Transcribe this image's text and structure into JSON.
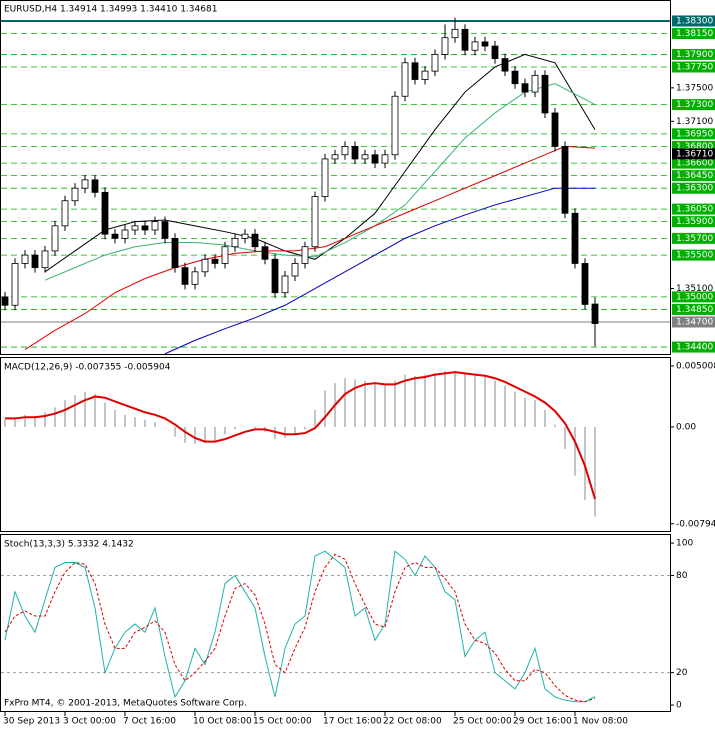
{
  "chart_data": [
    {
      "type": "candlestick",
      "title": "EURUSD,H4  1.34914 1.34993 1.34410 1.34681",
      "categories": [
        "30 Sep 2013",
        null,
        null,
        null,
        null,
        null,
        "3 Oct 00:00",
        null,
        null,
        null,
        null,
        null,
        "7 Oct 16:00",
        null,
        null,
        null,
        null,
        null,
        null,
        "10 Oct 08:00",
        null,
        null,
        null,
        null,
        null,
        "15 Oct 00:00",
        null,
        null,
        null,
        null,
        null,
        null,
        "17 Oct 16:00",
        null,
        null,
        null,
        null,
        null,
        "22 Oct 08:00",
        null,
        null,
        null,
        null,
        null,
        null,
        "25 Oct 00:00",
        null,
        null,
        null,
        null,
        null,
        "29 Oct 16:00",
        null,
        null,
        null,
        null,
        null,
        "1 Nov 08:00",
        null,
        null
      ],
      "open": [
        1.35,
        1.349,
        1.354,
        1.355,
        1.3535,
        1.3555,
        1.3585,
        1.3615,
        1.363,
        1.364,
        1.3625,
        1.3575,
        1.357,
        1.358,
        1.3585,
        1.358,
        1.359,
        1.357,
        1.3535,
        1.3515,
        1.353,
        1.3545,
        1.354,
        1.356,
        1.357,
        1.3575,
        1.356,
        1.3545,
        1.3505,
        1.3525,
        1.354,
        1.356,
        1.362,
        1.3665,
        1.367,
        1.368,
        1.3665,
        1.367,
        1.366,
        1.367,
        1.374,
        1.378,
        1.376,
        1.377,
        1.379,
        1.381,
        1.382,
        1.3795,
        1.3805,
        1.38,
        1.3785,
        1.377,
        1.3755,
        1.3745,
        1.3765,
        1.372,
        1.368,
        1.36,
        1.354,
        1.34914
      ],
      "high": [
        1.3506,
        1.3546,
        1.3556,
        1.3556,
        1.3561,
        1.3591,
        1.3621,
        1.3636,
        1.3646,
        1.3646,
        1.3631,
        1.3581,
        1.3586,
        1.3591,
        1.3591,
        1.3596,
        1.3596,
        1.3576,
        1.3541,
        1.3536,
        1.3551,
        1.3551,
        1.3566,
        1.3576,
        1.3581,
        1.3581,
        1.3566,
        1.3551,
        1.3531,
        1.3546,
        1.3566,
        1.3626,
        1.3671,
        1.3676,
        1.3686,
        1.3686,
        1.3676,
        1.3676,
        1.3676,
        1.3746,
        1.3786,
        1.3786,
        1.3776,
        1.3796,
        1.3826,
        1.3834,
        1.3826,
        1.3811,
        1.3811,
        1.3806,
        1.3791,
        1.3776,
        1.3761,
        1.3771,
        1.3771,
        1.3726,
        1.3686,
        1.3606,
        1.3546,
        1.34993
      ],
      "low": [
        1.3484,
        1.3484,
        1.3534,
        1.3529,
        1.3529,
        1.3549,
        1.3579,
        1.3609,
        1.3624,
        1.3619,
        1.3569,
        1.3564,
        1.3564,
        1.3574,
        1.3574,
        1.3574,
        1.3564,
        1.3529,
        1.3509,
        1.3509,
        1.3524,
        1.3534,
        1.3534,
        1.3554,
        1.3564,
        1.3554,
        1.3539,
        1.3499,
        1.3499,
        1.3519,
        1.3534,
        1.3554,
        1.3614,
        1.3659,
        1.3664,
        1.3659,
        1.3659,
        1.3654,
        1.3654,
        1.3664,
        1.3734,
        1.3754,
        1.3754,
        1.3764,
        1.3784,
        1.3804,
        1.3789,
        1.3789,
        1.3794,
        1.3779,
        1.3764,
        1.3749,
        1.3739,
        1.3739,
        1.3714,
        1.3674,
        1.3594,
        1.3534,
        1.3485,
        1.3441
      ],
      "close": [
        1.349,
        1.354,
        1.355,
        1.3535,
        1.3555,
        1.3585,
        1.3615,
        1.363,
        1.364,
        1.3625,
        1.3575,
        1.357,
        1.358,
        1.3585,
        1.358,
        1.359,
        1.357,
        1.3535,
        1.3515,
        1.353,
        1.3545,
        1.354,
        1.356,
        1.357,
        1.3575,
        1.356,
        1.3545,
        1.3505,
        1.3525,
        1.354,
        1.356,
        1.362,
        1.3665,
        1.367,
        1.368,
        1.3665,
        1.367,
        1.366,
        1.367,
        1.374,
        1.378,
        1.376,
        1.377,
        1.379,
        1.381,
        1.382,
        1.3795,
        1.3805,
        1.38,
        1.3785,
        1.377,
        1.3755,
        1.3745,
        1.3765,
        1.372,
        1.368,
        1.36,
        1.354,
        1.3491,
        1.34681
      ],
      "overlays": [
        {
          "color": "#000000",
          "x": [
            4,
            7,
            10,
            13,
            16,
            19,
            22,
            25,
            28,
            31,
            34,
            37,
            40,
            43,
            46,
            49,
            52,
            55,
            59
          ],
          "values": [
            1.353,
            1.3555,
            1.358,
            1.359,
            1.3592,
            1.3585,
            1.3578,
            1.357,
            1.3555,
            1.3545,
            1.357,
            1.36,
            1.365,
            1.37,
            1.3745,
            1.3775,
            1.379,
            1.378,
            1.37
          ]
        },
        {
          "color": "#3cb371",
          "x": [
            4,
            7,
            10,
            13,
            16,
            19,
            22,
            25,
            28,
            31,
            34,
            37,
            40,
            43,
            46,
            49,
            52,
            55,
            59
          ],
          "values": [
            1.352,
            1.3535,
            1.355,
            1.356,
            1.3565,
            1.3565,
            1.3562,
            1.3555,
            1.355,
            1.3548,
            1.3565,
            1.3585,
            1.361,
            1.365,
            1.369,
            1.372,
            1.3745,
            1.3755,
            1.373
          ]
        },
        {
          "color": "#e00000",
          "x": [
            2,
            5,
            8,
            11,
            14,
            17,
            20,
            23,
            26,
            29,
            32,
            35,
            38,
            41,
            44,
            47,
            50,
            53,
            56,
            59
          ],
          "values": [
            1.3437,
            1.346,
            1.348,
            1.3505,
            1.3522,
            1.3535,
            1.3545,
            1.3552,
            1.3555,
            1.3555,
            1.356,
            1.3575,
            1.359,
            1.3605,
            1.362,
            1.3635,
            1.365,
            1.3665,
            1.368,
            1.3678
          ]
        },
        {
          "color": "#0000c0",
          "x": [
            16,
            19,
            22,
            25,
            28,
            31,
            34,
            37,
            40,
            43,
            46,
            49,
            52,
            55,
            59
          ],
          "values": [
            1.3432,
            1.3448,
            1.3462,
            1.3475,
            1.349,
            1.351,
            1.353,
            1.355,
            1.357,
            1.3585,
            1.3598,
            1.361,
            1.362,
            1.363,
            1.363
          ]
        }
      ],
      "ylim": [
        1.34305,
        1.38551
      ],
      "yticks": [
        {
          "value": 1.375,
          "label": "1.37500"
        },
        {
          "value": 1.371,
          "label": "1.37100"
        },
        {
          "value": 1.351,
          "label": "1.35100"
        }
      ],
      "levels": [
        {
          "value": 1.3815,
          "label": "1.38150"
        },
        {
          "value": 1.379,
          "label": "1.37900"
        },
        {
          "value": 1.3775,
          "label": "1.37750"
        },
        {
          "value": 1.373,
          "label": "1.37300"
        },
        {
          "value": 1.3695,
          "label": "1.36950"
        },
        {
          "value": 1.368,
          "label": "1.36800"
        },
        {
          "value": 1.366,
          "label": "1.36600"
        },
        {
          "value": 1.3645,
          "label": "1.36450"
        },
        {
          "value": 1.363,
          "label": "1.36300"
        },
        {
          "value": 1.3605,
          "label": "1.36050"
        },
        {
          "value": 1.359,
          "label": "1.35900"
        },
        {
          "value": 1.357,
          "label": "1.35700"
        },
        {
          "value": 1.355,
          "label": "1.35500"
        },
        {
          "value": 1.35,
          "label": "1.35000"
        },
        {
          "value": 1.3485,
          "label": "1.34850"
        },
        {
          "value": 1.344,
          "label": "1.34400"
        }
      ],
      "level_color": "#00b000",
      "price_lines": [
        {
          "value": 1.383,
          "label": "1.38300",
          "color": "#006a6a"
        },
        {
          "value": 1.3671,
          "label": "1.36710",
          "color": "#000000"
        },
        {
          "value": 1.347,
          "label": "1.34700",
          "color": "#808080"
        }
      ]
    },
    {
      "type": "macd",
      "title": "MACD(12,26,9) -0.007355 -0.005904",
      "ylim": [
        -0.00862,
        0.00566
      ],
      "yticks": [
        0.005008,
        {
          "value": 0,
          "label": "0.00"
        },
        -0.007943
      ],
      "series": [
        {
          "type": "bar",
          "color": "#b0b0b0",
          "values": [
            0.0006,
            0.0008,
            0.001,
            0.0009,
            0.0012,
            0.0016,
            0.0022,
            0.0026,
            0.0029,
            0.0027,
            0.002,
            0.0014,
            0.001,
            0.0008,
            0.0006,
            0.0004,
            0.0,
            -0.0008,
            -0.0013,
            -0.0014,
            -0.0013,
            -0.0011,
            -0.0006,
            -0.0002,
            0.0,
            -0.0001,
            -0.0004,
            -0.001,
            -0.0009,
            -0.0006,
            -0.0002,
            0.0014,
            0.003,
            0.0036,
            0.004,
            0.0039,
            0.0038,
            0.0036,
            0.0035,
            0.0038,
            0.0043,
            0.0042,
            0.0043,
            0.0044,
            0.0046,
            0.0046,
            0.0044,
            0.0043,
            0.0041,
            0.0038,
            0.0034,
            0.0029,
            0.0024,
            0.0022,
            0.0014,
            0.0002,
            -0.0018,
            -0.004,
            -0.006,
            -0.007355
          ]
        },
        {
          "type": "line",
          "color": "#e00000",
          "values": [
            0.0007,
            0.0007,
            0.0008,
            0.0008,
            0.0009,
            0.0011,
            0.0014,
            0.0018,
            0.0022,
            0.0025,
            0.0024,
            0.0021,
            0.0018,
            0.0015,
            0.0012,
            0.001,
            0.0007,
            0.0002,
            -0.0004,
            -0.0009,
            -0.0012,
            -0.0012,
            -0.001,
            -0.0007,
            -0.0004,
            -0.0002,
            -0.0002,
            -0.0004,
            -0.0006,
            -0.0006,
            -0.0005,
            -0.0001,
            0.0008,
            0.0018,
            0.0027,
            0.0032,
            0.0035,
            0.0036,
            0.0035,
            0.0035,
            0.0038,
            0.004,
            0.0041,
            0.0043,
            0.0044,
            0.0045,
            0.0044,
            0.0043,
            0.0042,
            0.004,
            0.0037,
            0.0033,
            0.0029,
            0.0025,
            0.002,
            0.0013,
            0.0003,
            -0.0012,
            -0.0032,
            -0.005904
          ]
        }
      ]
    },
    {
      "type": "line",
      "title": "Stoch(13,3,3) 5.3332 4.1432",
      "note": "FxPro MT4, © 2001-2013, MetaQuotes Software Corp.",
      "ylim": [
        -4.3,
        105
      ],
      "yticks": [
        100,
        80,
        20,
        0
      ],
      "levels": [
        80,
        20
      ],
      "series": [
        {
          "color": "#20b2aa",
          "dashed": false,
          "values": [
            40,
            70,
            55,
            45,
            65,
            85,
            88,
            88,
            85,
            60,
            20,
            35,
            45,
            50,
            45,
            60,
            30,
            5,
            15,
            35,
            25,
            45,
            75,
            80,
            70,
            60,
            30,
            5,
            35,
            50,
            55,
            92,
            95,
            90,
            85,
            55,
            60,
            40,
            50,
            95,
            90,
            80,
            92,
            85,
            70,
            65,
            30,
            40,
            45,
            20,
            15,
            10,
            20,
            35,
            10,
            5,
            3,
            2,
            2,
            5.3332
          ]
        },
        {
          "color": "#e00000",
          "dashed": true,
          "values": [
            45,
            55,
            58,
            55,
            55,
            70,
            82,
            88,
            87,
            75,
            50,
            35,
            35,
            45,
            48,
            52,
            45,
            25,
            15,
            20,
            27,
            35,
            55,
            72,
            75,
            68,
            50,
            25,
            20,
            35,
            48,
            70,
            85,
            93,
            90,
            75,
            62,
            50,
            48,
            70,
            85,
            88,
            85,
            85,
            78,
            70,
            50,
            40,
            38,
            32,
            22,
            15,
            15,
            22,
            20,
            12,
            6,
            3,
            2,
            4.1432
          ]
        }
      ]
    }
  ]
}
